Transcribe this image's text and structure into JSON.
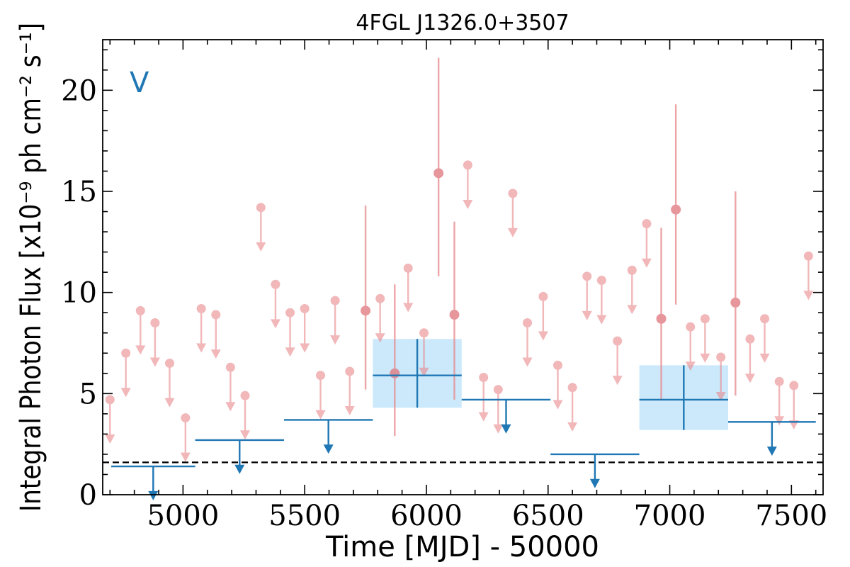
{
  "chart_data": {
    "type": "scatter",
    "title": "4FGL J1326.0+3507",
    "xlabel": "Time [MJD] - 50000",
    "ylabel": "Integral Photon Flux [x10⁻⁹ ph cm⁻² s⁻¹]",
    "annotation": "V",
    "xlim": [
      4670,
      7630
    ],
    "ylim": [
      0,
      22.5
    ],
    "xticks": [
      5000,
      5500,
      6000,
      6500,
      7000,
      7500
    ],
    "yticks": [
      0,
      5,
      10,
      15,
      20
    ],
    "xtick_labels": [
      "5000",
      "5500",
      "6000",
      "6500",
      "7000",
      "7500"
    ],
    "ytick_labels": [
      "0",
      "5",
      "10",
      "15",
      "20"
    ],
    "grid": false,
    "reference_line": {
      "y": 1.6,
      "style": "dashed"
    },
    "colors": {
      "short_bins": "#e8888c",
      "long_bins": "#1f77b4",
      "long_bin_band": "#cbe9fb"
    },
    "short_bins_upper_limits": [
      {
        "x": 4700,
        "y": 4.7
      },
      {
        "x": 4765,
        "y": 7.0
      },
      {
        "x": 4825,
        "y": 9.1
      },
      {
        "x": 4885,
        "y": 8.5
      },
      {
        "x": 4945,
        "y": 6.5
      },
      {
        "x": 5010,
        "y": 3.8
      },
      {
        "x": 5075,
        "y": 9.2
      },
      {
        "x": 5135,
        "y": 8.9
      },
      {
        "x": 5195,
        "y": 6.3
      },
      {
        "x": 5255,
        "y": 4.9
      },
      {
        "x": 5320,
        "y": 14.2
      },
      {
        "x": 5380,
        "y": 10.4
      },
      {
        "x": 5440,
        "y": 9.0
      },
      {
        "x": 5500,
        "y": 9.2
      },
      {
        "x": 5565,
        "y": 5.9
      },
      {
        "x": 5625,
        "y": 9.6
      },
      {
        "x": 5685,
        "y": 6.1
      },
      {
        "x": 5810,
        "y": 9.7
      },
      {
        "x": 5925,
        "y": 11.2
      },
      {
        "x": 5990,
        "y": 8.0
      },
      {
        "x": 6170,
        "y": 16.3
      },
      {
        "x": 6235,
        "y": 5.8
      },
      {
        "x": 6295,
        "y": 5.2
      },
      {
        "x": 6355,
        "y": 14.9
      },
      {
        "x": 6415,
        "y": 8.5
      },
      {
        "x": 6480,
        "y": 9.8
      },
      {
        "x": 6540,
        "y": 6.4
      },
      {
        "x": 6600,
        "y": 5.3
      },
      {
        "x": 6660,
        "y": 10.8
      },
      {
        "x": 6720,
        "y": 10.6
      },
      {
        "x": 6785,
        "y": 7.6
      },
      {
        "x": 6845,
        "y": 11.1
      },
      {
        "x": 6905,
        "y": 13.4
      },
      {
        "x": 7085,
        "y": 8.3
      },
      {
        "x": 7145,
        "y": 8.7
      },
      {
        "x": 7210,
        "y": 6.8
      },
      {
        "x": 7330,
        "y": 7.7
      },
      {
        "x": 7390,
        "y": 8.7
      },
      {
        "x": 7450,
        "y": 5.6
      },
      {
        "x": 7510,
        "y": 5.4
      },
      {
        "x": 7570,
        "y": 11.8
      }
    ],
    "short_bins_detections": [
      {
        "x": 5750,
        "y": 9.1,
        "ylo": 5.2,
        "yhi": 14.3
      },
      {
        "x": 5870,
        "y": 6.0,
        "ylo": 2.9,
        "yhi": 10.4
      },
      {
        "x": 6050,
        "y": 15.9,
        "ylo": 10.8,
        "yhi": 21.6
      },
      {
        "x": 6115,
        "y": 8.9,
        "ylo": 4.7,
        "yhi": 13.5
      },
      {
        "x": 6965,
        "y": 8.7,
        "ylo": 4.7,
        "yhi": 13.2
      },
      {
        "x": 7025,
        "y": 14.1,
        "ylo": 9.4,
        "yhi": 19.3
      },
      {
        "x": 7270,
        "y": 9.5,
        "ylo": 4.9,
        "yhi": 15.0
      }
    ],
    "long_bins_upper_limits": [
      {
        "x0": 4705,
        "x1": 5050,
        "y": 1.4
      },
      {
        "x0": 5050,
        "x1": 5415,
        "y": 2.7
      },
      {
        "x0": 5415,
        "x1": 5780,
        "y": 3.7
      },
      {
        "x0": 6145,
        "x1": 6510,
        "y": 4.7
      },
      {
        "x0": 6510,
        "x1": 6875,
        "y": 2.0
      },
      {
        "x0": 7240,
        "x1": 7600,
        "y": 3.6
      }
    ],
    "long_bins_detections": [
      {
        "x0": 5780,
        "x1": 6145,
        "y": 5.9,
        "ylo": 4.3,
        "yhi": 7.7
      },
      {
        "x0": 6875,
        "x1": 7240,
        "y": 4.7,
        "ylo": 3.2,
        "yhi": 6.4
      }
    ]
  }
}
